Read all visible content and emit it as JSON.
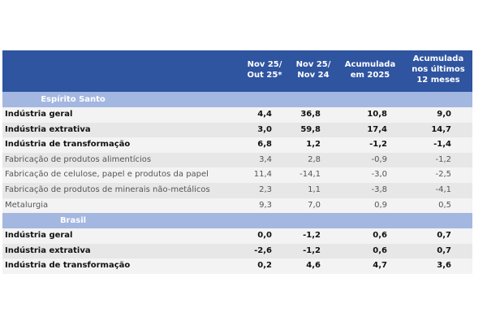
{
  "header": [
    "Nov 25/\nOut 25*",
    "Nov 25/\nNov 24",
    "Acumulada\nem 2025",
    "Acumulada\nnos últimos\n12 meses"
  ],
  "sections": [
    {
      "title": "Espírito Santo",
      "rows": [
        {
          "label": "Indústria geral",
          "bold": true,
          "values": [
            "4,4",
            "36,8",
            "10,8",
            "9,0"
          ]
        },
        {
          "label": "Indústria extrativa",
          "bold": true,
          "values": [
            "3,0",
            "59,8",
            "17,4",
            "14,7"
          ]
        },
        {
          "label": "Indústria de transformação",
          "bold": true,
          "values": [
            "6,8",
            "1,2",
            "-1,2",
            "-1,4"
          ]
        },
        {
          "label": "Fabricação de produtos alimentícios",
          "bold": false,
          "values": [
            "3,4",
            "2,8",
            "-0,9",
            "-1,2"
          ]
        },
        {
          "label": "Fabricação de celulose, papel e produtos da papel",
          "bold": false,
          "values": [
            "11,4",
            "-14,1",
            "-3,0",
            "-2,5"
          ]
        },
        {
          "label": "Fabricação de produtos de minerais não-metálicos",
          "bold": false,
          "values": [
            "2,3",
            "1,1",
            "-3,8",
            "-4,1"
          ]
        },
        {
          "label": "Metalurgia",
          "bold": false,
          "values": [
            "9,3",
            "7,0",
            "0,9",
            "0,5"
          ]
        }
      ]
    },
    {
      "title": "Brasil",
      "rows": [
        {
          "label": "Indústria geral",
          "bold": true,
          "values": [
            "0,0",
            "-1,2",
            "0,6",
            "0,7"
          ]
        },
        {
          "label": "Indústria extrativa",
          "bold": true,
          "values": [
            "-2,6",
            "-1,2",
            "0,6",
            "0,7"
          ]
        },
        {
          "label": "Indústria de transformação",
          "bold": true,
          "values": [
            "0,2",
            "4,6",
            "4,7",
            "3,6"
          ]
        }
      ]
    }
  ],
  "colors": {
    "header_bg": "#2F54A0",
    "section_bg": "#A4B7E1"
  }
}
